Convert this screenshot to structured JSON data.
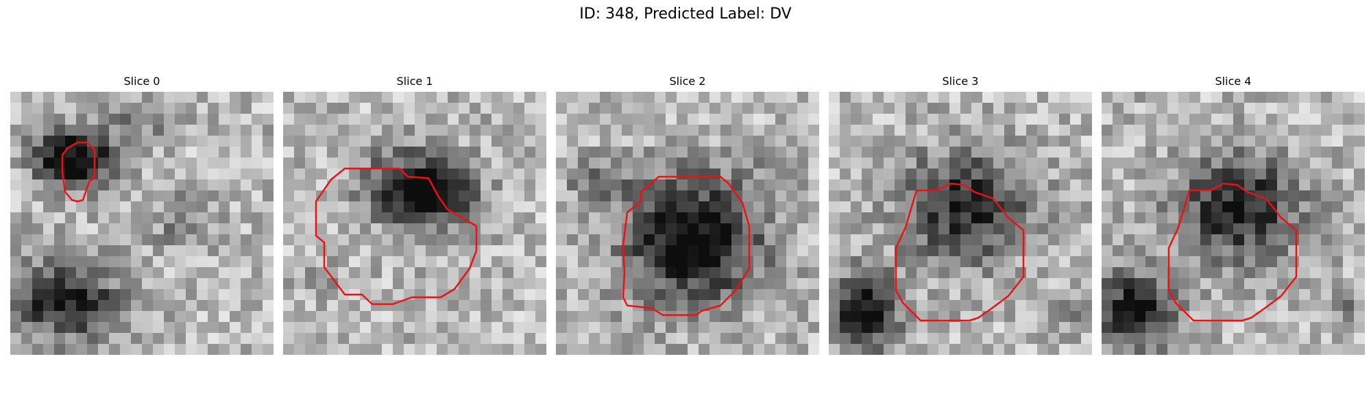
{
  "figure": {
    "title": "ID: 348, Predicted Label: DV",
    "contour_color": "#ee1111"
  },
  "panels": [
    {
      "title": "Slice 0"
    },
    {
      "title": "Slice 1"
    },
    {
      "title": "Slice 2"
    },
    {
      "title": "Slice 3"
    },
    {
      "title": "Slice 4"
    }
  ]
}
